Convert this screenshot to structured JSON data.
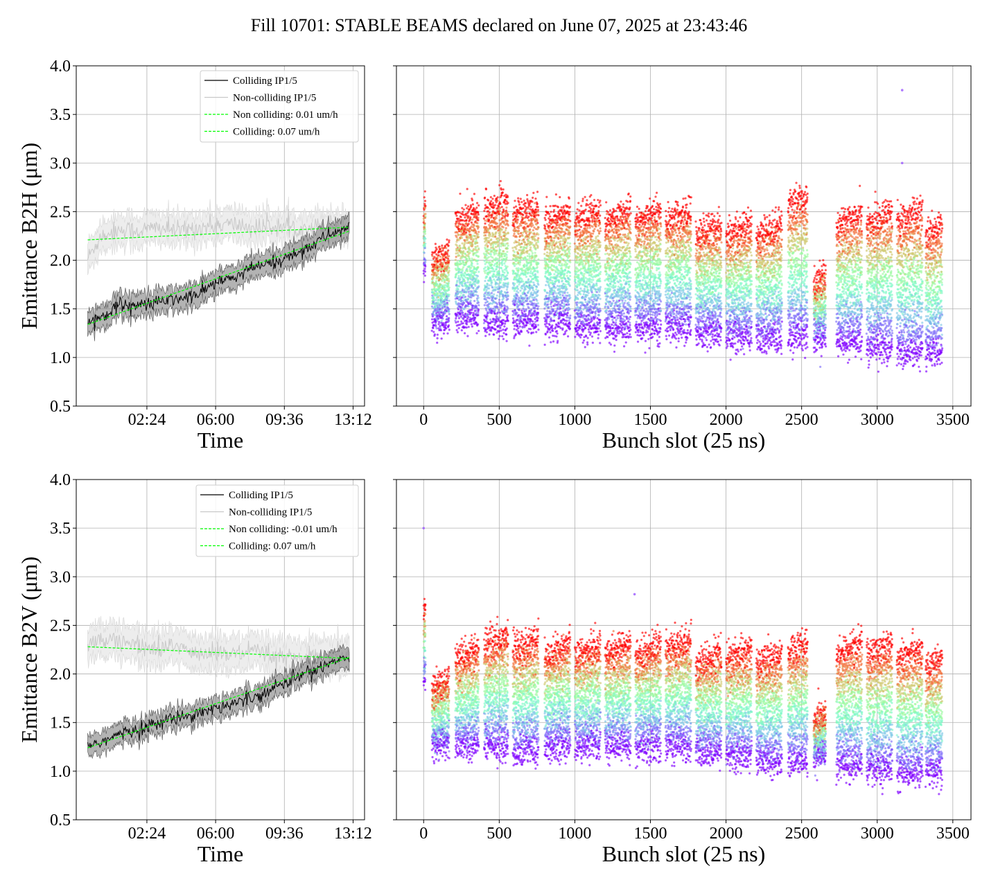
{
  "figure_title": "Fill 10701: STABLE BEAMS declared on June 07, 2025 at 23:43:46",
  "colors": {
    "colliding": "#000000",
    "colliding_band": "#808080",
    "noncolliding": "#c8c8c8",
    "noncolliding_band": "#e6e6e6",
    "fit": "#00ff00",
    "grid": "#b0b0b0"
  },
  "chart_data": [
    {
      "type": "line",
      "title": "",
      "xlabel": "Time",
      "ylabel": "Emittance B2H (μm)",
      "x_unit": "hours since 00:00",
      "xlim": [
        -1.3,
        13.8
      ],
      "ylim": [
        0.5,
        4.0
      ],
      "x_ticks": [
        2.4,
        6.0,
        9.6,
        13.2
      ],
      "x_tick_labels": [
        "02:24",
        "06:00",
        "09:36",
        "13:12"
      ],
      "y_ticks": [
        0.5,
        1.0,
        1.5,
        2.0,
        2.5,
        3.0,
        3.5,
        4.0
      ],
      "y_tick_labels": [
        "0.5",
        "1.0",
        "1.5",
        "2.0",
        "2.5",
        "3.0",
        "3.5",
        "4.0"
      ],
      "grid": true,
      "legend_position": "top-right",
      "x": [
        -0.7,
        0.0,
        1.0,
        2.0,
        3.0,
        4.0,
        5.0,
        6.0,
        7.0,
        8.0,
        9.0,
        10.0,
        11.0,
        12.0,
        13.0
      ],
      "series": [
        {
          "name": "Colliding IP1/5",
          "style": "solid",
          "color": "#000000",
          "values": [
            1.36,
            1.42,
            1.55,
            1.53,
            1.57,
            1.6,
            1.64,
            1.77,
            1.82,
            1.93,
            1.97,
            2.05,
            2.15,
            2.27,
            2.34
          ],
          "band_half_width": 0.12
        },
        {
          "name": "Non-colliding IP1/5",
          "style": "solid",
          "color": "#c8c8c8",
          "values": [
            2.02,
            2.25,
            2.32,
            2.3,
            2.34,
            2.3,
            2.33,
            2.36,
            2.37,
            2.33,
            2.35,
            2.33,
            2.34,
            2.36,
            2.35
          ],
          "band_half_width": 0.15
        },
        {
          "name": "Non colliding: 0.01 um/h",
          "style": "dashed",
          "color": "#00ff00",
          "x": [
            -0.7,
            13.0
          ],
          "values": [
            2.21,
            2.34
          ]
        },
        {
          "name": "Colliding: 0.07 um/h",
          "style": "dashed",
          "color": "#00ff00",
          "x": [
            -0.7,
            13.0
          ],
          "values": [
            1.34,
            2.3
          ]
        }
      ]
    },
    {
      "type": "scatter",
      "title": "",
      "xlabel": "Bunch slot (25 ns)",
      "ylabel": "",
      "xlim": [
        -180,
        3620
      ],
      "ylim": [
        0.5,
        4.0
      ],
      "x_ticks": [
        0,
        500,
        1000,
        1500,
        2000,
        2500,
        3000,
        3500
      ],
      "x_tick_labels": [
        "0",
        "500",
        "1000",
        "1500",
        "2000",
        "2500",
        "3000",
        "3500"
      ],
      "y_ticks": [
        0.5,
        1.0,
        1.5,
        2.0,
        2.5,
        3.0,
        3.5,
        4.0
      ],
      "grid": true,
      "color_scale": "rainbow (purple = early, red = late)",
      "trains": [
        {
          "start": 0,
          "end": 12,
          "low": 1.9,
          "high": 2.8
        },
        {
          "start": 55,
          "end": 170,
          "low": 1.35,
          "high": 2.35
        },
        {
          "start": 210,
          "end": 365,
          "low": 1.4,
          "high": 2.75
        },
        {
          "start": 400,
          "end": 560,
          "low": 1.35,
          "high": 2.85
        },
        {
          "start": 590,
          "end": 760,
          "low": 1.35,
          "high": 2.8
        },
        {
          "start": 800,
          "end": 970,
          "low": 1.35,
          "high": 2.75
        },
        {
          "start": 1000,
          "end": 1170,
          "low": 1.3,
          "high": 2.75
        },
        {
          "start": 1200,
          "end": 1370,
          "low": 1.3,
          "high": 2.75
        },
        {
          "start": 1400,
          "end": 1570,
          "low": 1.3,
          "high": 2.75
        },
        {
          "start": 1600,
          "end": 1770,
          "low": 1.3,
          "high": 2.75
        },
        {
          "start": 1800,
          "end": 1970,
          "low": 1.25,
          "high": 2.6
        },
        {
          "start": 2000,
          "end": 2170,
          "low": 1.2,
          "high": 2.6
        },
        {
          "start": 2200,
          "end": 2370,
          "low": 1.2,
          "high": 2.6
        },
        {
          "start": 2410,
          "end": 2540,
          "low": 1.2,
          "high": 2.9
        },
        {
          "start": 2580,
          "end": 2660,
          "low": 1.2,
          "high": 2.1
        },
        {
          "start": 2730,
          "end": 2900,
          "low": 1.15,
          "high": 2.7
        },
        {
          "start": 2930,
          "end": 3100,
          "low": 1.1,
          "high": 2.75
        },
        {
          "start": 3130,
          "end": 3300,
          "low": 1.05,
          "high": 2.75
        },
        {
          "start": 3320,
          "end": 3430,
          "low": 1.05,
          "high": 2.6
        }
      ],
      "outliers": [
        {
          "x": 3165,
          "y": 3.75
        },
        {
          "x": 3165,
          "y": 3.0
        }
      ]
    },
    {
      "type": "line",
      "title": "",
      "xlabel": "Time",
      "ylabel": "Emittance B2V (μm)",
      "x_unit": "hours since 00:00",
      "xlim": [
        -1.3,
        13.8
      ],
      "ylim": [
        0.5,
        4.0
      ],
      "x_ticks": [
        2.4,
        6.0,
        9.6,
        13.2
      ],
      "x_tick_labels": [
        "02:24",
        "06:00",
        "09:36",
        "13:12"
      ],
      "y_ticks": [
        0.5,
        1.0,
        1.5,
        2.0,
        2.5,
        3.0,
        3.5,
        4.0
      ],
      "y_tick_labels": [
        "0.5",
        "1.0",
        "1.5",
        "2.0",
        "2.5",
        "3.0",
        "3.5",
        "4.0"
      ],
      "grid": true,
      "legend_position": "top-right",
      "x": [
        -0.7,
        0.0,
        1.0,
        2.0,
        3.0,
        4.0,
        5.0,
        6.0,
        7.0,
        8.0,
        9.0,
        10.0,
        11.0,
        12.0,
        13.0
      ],
      "series": [
        {
          "name": "Colliding IP1/5",
          "style": "solid",
          "color": "#000000",
          "values": [
            1.26,
            1.3,
            1.38,
            1.43,
            1.5,
            1.55,
            1.6,
            1.65,
            1.7,
            1.77,
            1.85,
            1.95,
            2.03,
            2.12,
            2.18
          ],
          "band_half_width": 0.11
        },
        {
          "name": "Non-colliding IP1/5",
          "style": "solid",
          "color": "#c8c8c8",
          "values": [
            2.28,
            2.38,
            2.32,
            2.3,
            2.25,
            2.3,
            2.2,
            2.22,
            2.2,
            2.23,
            2.18,
            2.15,
            2.16,
            2.17,
            2.2
          ],
          "band_half_width": 0.17
        },
        {
          "name": "Non colliding: -0.01 um/h",
          "style": "dashed",
          "color": "#00ff00",
          "x": [
            -0.7,
            13.0
          ],
          "values": [
            2.28,
            2.16
          ]
        },
        {
          "name": "Colliding: 0.07 um/h",
          "style": "dashed",
          "color": "#00ff00",
          "x": [
            -0.7,
            13.0
          ],
          "values": [
            1.24,
            2.17
          ]
        }
      ]
    },
    {
      "type": "scatter",
      "title": "",
      "xlabel": "Bunch slot (25 ns)",
      "ylabel": "",
      "xlim": [
        -180,
        3620
      ],
      "ylim": [
        0.5,
        4.0
      ],
      "x_ticks": [
        0,
        500,
        1000,
        1500,
        2000,
        2500,
        3000,
        3500
      ],
      "x_tick_labels": [
        "0",
        "500",
        "1000",
        "1500",
        "2000",
        "2500",
        "3000",
        "3500"
      ],
      "y_ticks": [
        0.5,
        1.0,
        1.5,
        2.0,
        2.5,
        3.0,
        3.5,
        4.0
      ],
      "grid": true,
      "color_scale": "rainbow (purple = early, red = late)",
      "trains": [
        {
          "start": 0,
          "end": 12,
          "low": 1.95,
          "high": 2.95
        },
        {
          "start": 55,
          "end": 170,
          "low": 1.25,
          "high": 2.2
        },
        {
          "start": 210,
          "end": 365,
          "low": 1.25,
          "high": 2.5
        },
        {
          "start": 400,
          "end": 560,
          "low": 1.25,
          "high": 2.65
        },
        {
          "start": 590,
          "end": 760,
          "low": 1.2,
          "high": 2.6
        },
        {
          "start": 800,
          "end": 970,
          "low": 1.25,
          "high": 2.55
        },
        {
          "start": 1000,
          "end": 1170,
          "low": 1.25,
          "high": 2.55
        },
        {
          "start": 1200,
          "end": 1370,
          "low": 1.25,
          "high": 2.55
        },
        {
          "start": 1400,
          "end": 1570,
          "low": 1.25,
          "high": 2.55
        },
        {
          "start": 1600,
          "end": 1770,
          "low": 1.25,
          "high": 2.6
        },
        {
          "start": 1800,
          "end": 1970,
          "low": 1.2,
          "high": 2.45
        },
        {
          "start": 2000,
          "end": 2170,
          "low": 1.15,
          "high": 2.5
        },
        {
          "start": 2200,
          "end": 2370,
          "low": 1.1,
          "high": 2.45
        },
        {
          "start": 2410,
          "end": 2540,
          "low": 1.1,
          "high": 2.55
        },
        {
          "start": 2580,
          "end": 2660,
          "low": 1.15,
          "high": 1.85
        },
        {
          "start": 2730,
          "end": 2900,
          "low": 1.05,
          "high": 2.55
        },
        {
          "start": 2930,
          "end": 3100,
          "low": 1.0,
          "high": 2.55
        },
        {
          "start": 3130,
          "end": 3300,
          "low": 0.98,
          "high": 2.5
        },
        {
          "start": 3320,
          "end": 3430,
          "low": 1.0,
          "high": 2.4
        }
      ],
      "outliers": [
        {
          "x": 0,
          "y": 3.5
        },
        {
          "x": 1395,
          "y": 2.82
        }
      ]
    }
  ]
}
